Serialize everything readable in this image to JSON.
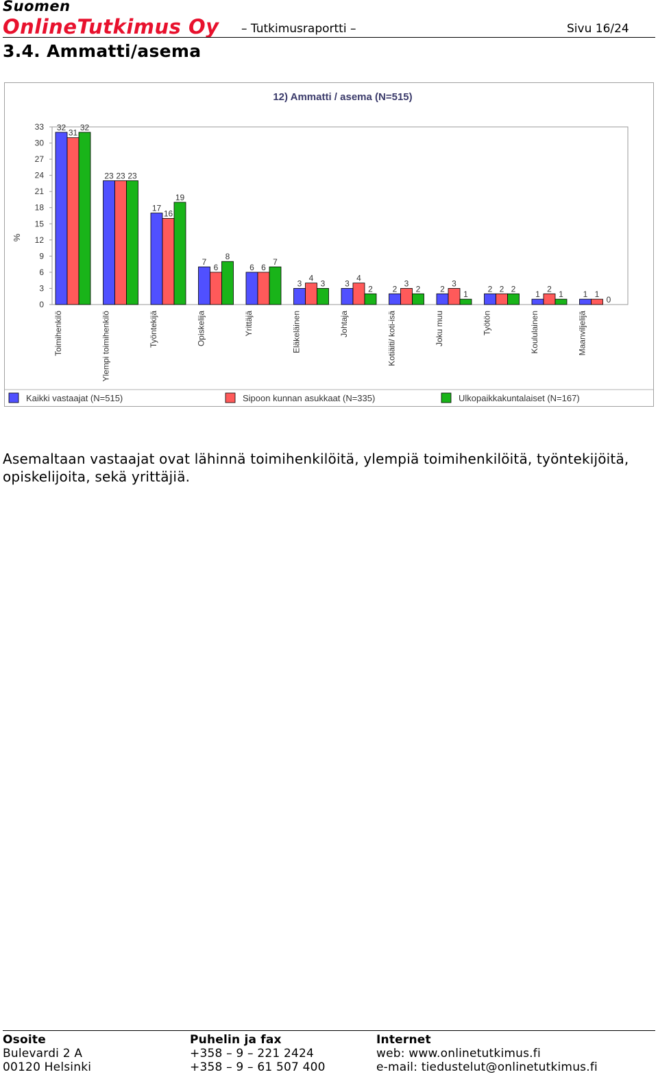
{
  "header": {
    "company_line1": "Suomen",
    "company_line2": "OnlineTutkimus Oy",
    "document_type": "– Tutkimusraportti –",
    "page": "Sivu 16/24"
  },
  "section": {
    "title": "3.4. Ammatti/asema"
  },
  "body": {
    "paragraph": "Asemaltaan vastaajat ovat lähinnä toimihenkilöitä, ylempiä toimihenkilöitä, työntekijöitä, opiskelijoita, sekä yrittäjiä."
  },
  "chart_data": {
    "type": "bar",
    "title": "12) Ammatti / asema (N=515)",
    "xlabel": "",
    "ylabel": "%",
    "ylim": [
      0,
      33
    ],
    "yticks": [
      0,
      3,
      6,
      9,
      12,
      15,
      18,
      21,
      24,
      27,
      30,
      33
    ],
    "grid": false,
    "legend_position": "bottom",
    "categories": [
      "Toimihenkilö",
      "Ylempi toimihenkilö",
      "Työntekijä",
      "Opiskelija",
      "Yrittäjä",
      "Eläkeläinen",
      "Johtaja",
      "Kotiäiti/ koti-isä",
      "Joku muu",
      "Työtön",
      "Koululainen",
      "Maanviljelijä"
    ],
    "series": [
      {
        "name": "Kaikki vastaajat (N=515)",
        "color": "#5050ff",
        "values": [
          32,
          23,
          17,
          7,
          6,
          3,
          3,
          2,
          2,
          2,
          1,
          1
        ]
      },
      {
        "name": "Sipoon kunnan asukkaat (N=335)",
        "color": "#ff5a5a",
        "values": [
          31,
          23,
          16,
          6,
          6,
          4,
          4,
          3,
          3,
          2,
          2,
          1
        ]
      },
      {
        "name": "Ulkopaikkakuntalaiset (N=167)",
        "color": "#19b419",
        "values": [
          32,
          23,
          19,
          8,
          7,
          3,
          2,
          2,
          1,
          2,
          1,
          0
        ]
      }
    ]
  },
  "footer": {
    "col1": {
      "heading": "Osoite",
      "line1": "Bulevardi 2 A",
      "line2": "00120 Helsinki"
    },
    "col2": {
      "heading": "Puhelin ja fax",
      "line1": "+358 – 9 – 221 2424",
      "line2": "+358 – 9 – 61 507 400"
    },
    "col3": {
      "heading": "Internet",
      "line1": "web: www.onlinetutkimus.fi",
      "line2": "e-mail: tiedustelut@onlinetutkimus.fi"
    }
  }
}
